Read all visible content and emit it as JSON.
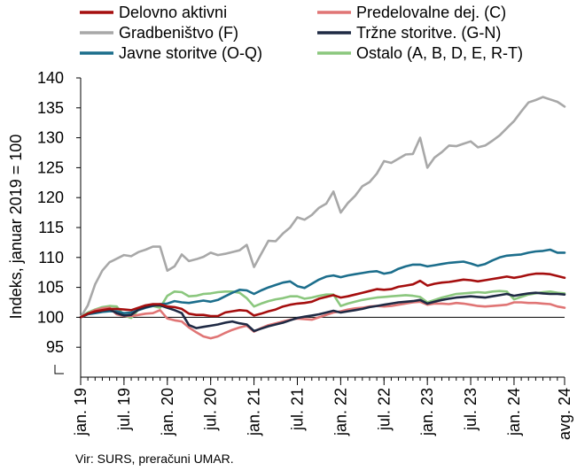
{
  "chart_data": {
    "type": "line",
    "title": "",
    "xlabel": "",
    "ylabel": "Indeks, januar 2019 = 100",
    "ylim": [
      92,
      140
    ],
    "y_ticks": [
      95,
      100,
      105,
      110,
      115,
      120,
      125,
      130,
      135,
      140
    ],
    "y_tick_labels": [
      "95",
      "100",
      "105",
      "110",
      "115",
      "120",
      "125",
      "130",
      "135",
      "140"
    ],
    "x_tick_labels": [
      "jan. 19",
      "jul. 19",
      "jan. 20",
      "jul. 20",
      "jan. 21",
      "jul. 21",
      "jan. 22",
      "jul. 22",
      "jan. 23",
      "jul. 23",
      "jan. 24",
      "avg. 24"
    ],
    "x_tick_months": [
      0,
      6,
      12,
      18,
      24,
      30,
      36,
      42,
      48,
      54,
      60,
      67
    ],
    "reference_line": 100,
    "legend_position": "top",
    "source": "Vir: SURS, preračuni UMAR.",
    "series": [
      {
        "name": "Delovno aktivni",
        "color": "#A50E0E",
        "values": [
          100,
          100.6,
          101,
          101.2,
          101.4,
          101.4,
          101.3,
          101.2,
          101.6,
          102,
          102.2,
          102.2,
          101.8,
          101.7,
          101.4,
          100.6,
          100.4,
          100.4,
          100.2,
          100.2,
          100.8,
          101,
          101.2,
          101.1,
          100.3,
          100.6,
          101,
          101.3,
          101.8,
          102.1,
          102.3,
          102.4,
          102.6,
          103.1,
          103.4,
          103.7,
          103.3,
          103.5,
          103.8,
          104.1,
          104.4,
          104.7,
          104.6,
          104.7,
          105.1,
          105.3,
          105.5,
          106.1,
          105.3,
          105.6,
          105.8,
          105.9,
          106.1,
          106.3,
          106.2,
          106,
          106.2,
          106.4,
          106.6,
          106.8,
          106.6,
          106.8,
          107.1,
          107.3,
          107.3,
          107.2,
          106.9,
          106.6
        ]
      },
      {
        "name": "Predelovalne dej. (C)",
        "color": "#E07575",
        "values": [
          100,
          100.6,
          101.2,
          101.5,
          101.6,
          100.5,
          100.2,
          100.2,
          100.4,
          100.6,
          100.7,
          101.2,
          99.8,
          99.5,
          99.3,
          98.3,
          97.5,
          96.8,
          96.5,
          96.8,
          97.4,
          97.9,
          98.3,
          98.6,
          97.6,
          98.2,
          98.7,
          99,
          99.3,
          99.6,
          99.8,
          99.7,
          99.6,
          100,
          100.4,
          100.8,
          101,
          101.3,
          101.5,
          101.6,
          101.8,
          101.9,
          101.8,
          101.9,
          102.1,
          102.3,
          102.5,
          102.6,
          102.1,
          102.3,
          102.3,
          102.2,
          102.4,
          102.3,
          102.1,
          101.9,
          101.8,
          101.9,
          102,
          102.1,
          102.5,
          102.5,
          102.4,
          102.4,
          102.3,
          102.2,
          101.8,
          101.6
        ]
      },
      {
        "name": "Gradbeništvo (F)",
        "color": "#A8A8A8",
        "values": [
          100,
          102,
          105.5,
          107.8,
          109.2,
          109.8,
          110.4,
          110.2,
          110.9,
          111.3,
          111.8,
          111.8,
          107.8,
          108.5,
          110.5,
          109.4,
          109.7,
          110.1,
          110.8,
          110.4,
          110.6,
          110.9,
          111.2,
          112.1,
          108.4,
          110.6,
          112.8,
          112.7,
          114,
          115,
          116.7,
          116.3,
          117.1,
          118.3,
          119,
          121,
          117.5,
          119.1,
          120.3,
          121.9,
          122.6,
          124,
          126.1,
          125.8,
          126.5,
          127.2,
          127.3,
          130,
          125,
          126.7,
          127.6,
          128.7,
          128.6,
          129,
          129.4,
          128.4,
          128.7,
          129.5,
          130.4,
          131.6,
          132.8,
          134.4,
          135.9,
          136.3,
          136.8,
          136.4,
          136,
          135.2
        ]
      },
      {
        "name": "Tržne storitve. (G-N)",
        "color": "#1F2A44",
        "values": [
          100,
          100.6,
          100.9,
          101.1,
          101.3,
          100.7,
          100.3,
          100.4,
          101.3,
          101.7,
          102,
          102,
          101.6,
          101.2,
          100.7,
          98.7,
          98.2,
          98.4,
          98.6,
          98.8,
          99.1,
          99.3,
          99,
          98.8,
          97.7,
          98.1,
          98.5,
          98.8,
          99.1,
          99.5,
          99.9,
          100.1,
          100.3,
          100.5,
          100.8,
          101.1,
          100.8,
          101,
          101.2,
          101.4,
          101.7,
          101.9,
          102.1,
          102.3,
          102.5,
          102.6,
          102.7,
          102.9,
          102.3,
          102.6,
          102.9,
          103.1,
          103.3,
          103.4,
          103.5,
          103.4,
          103.3,
          103.5,
          103.7,
          103.9,
          103.6,
          103.8,
          104,
          104.1,
          104,
          103.9,
          103.9,
          103.8
        ]
      },
      {
        "name": "Javne storitve (O-Q)",
        "color": "#1C6E8C",
        "values": [
          100,
          100.5,
          100.7,
          100.9,
          101,
          101,
          100.7,
          100.8,
          101.2,
          101.6,
          101.9,
          102.2,
          102.3,
          102.7,
          102.5,
          102.4,
          102.6,
          102.8,
          102.6,
          102.9,
          103.5,
          104.1,
          104.6,
          104.5,
          103.9,
          104.5,
          105,
          105.4,
          105.8,
          106,
          105.2,
          104.9,
          105.6,
          106.3,
          106.8,
          107,
          106.7,
          107,
          107.2,
          107.4,
          107.6,
          107.7,
          107.3,
          107.5,
          108.1,
          108.5,
          108.8,
          108.8,
          108.5,
          108.7,
          108.9,
          109.1,
          109.2,
          109.3,
          109,
          108.6,
          108.9,
          109.5,
          110,
          110.3,
          110.4,
          110.5,
          110.8,
          111,
          111.1,
          111.3,
          110.8,
          110.8
        ]
      },
      {
        "name": "Ostalo (A, B, D, E, R-T)",
        "color": "#8BC77E",
        "values": [
          100,
          100.8,
          101.3,
          101.7,
          101.9,
          101.8,
          100.3,
          99.9,
          101.3,
          101.7,
          101.9,
          101.6,
          103.6,
          104.3,
          104.2,
          103.5,
          103.6,
          103.9,
          104,
          104.2,
          104.3,
          104.3,
          104.1,
          103.2,
          101.8,
          102.3,
          102.7,
          103,
          103.2,
          103.5,
          103.5,
          103.1,
          103.3,
          103.6,
          103.8,
          103.8,
          101.9,
          102.3,
          102.6,
          102.9,
          103.1,
          103.3,
          103.4,
          103.5,
          103.6,
          103.7,
          103.6,
          103.4,
          102.5,
          102.9,
          103.3,
          103.6,
          103.9,
          104,
          104.1,
          104.2,
          104.1,
          104.3,
          104.4,
          104.3,
          103,
          103.4,
          103.8,
          104,
          104.2,
          104.3,
          104.1,
          104
        ]
      }
    ]
  }
}
